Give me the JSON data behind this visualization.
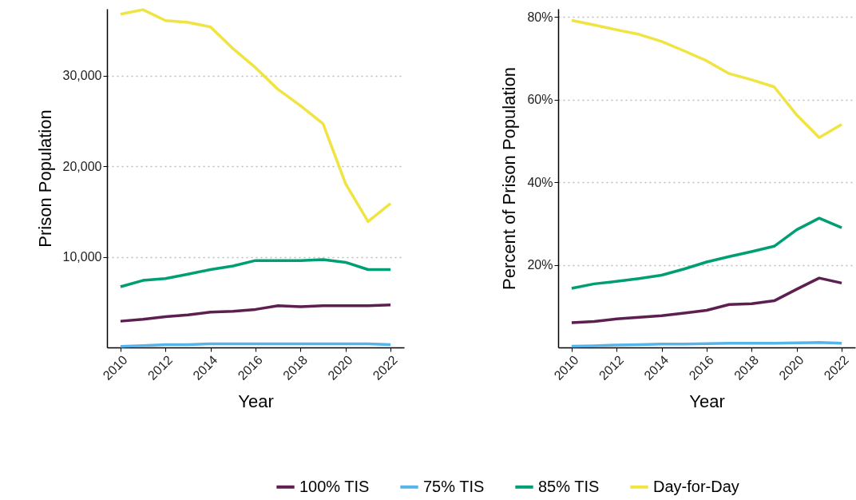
{
  "chart_data": [
    {
      "type": "line",
      "xlabel": "Year",
      "ylabel": "Prison Population",
      "x": [
        2010,
        2011,
        2012,
        2013,
        2014,
        2015,
        2016,
        2017,
        2018,
        2019,
        2020,
        2021,
        2022
      ],
      "series": [
        {
          "name": "100% TIS",
          "color": "#5c1f4f",
          "values": [
            2900,
            3100,
            3400,
            3600,
            3900,
            4000,
            4200,
            4600,
            4500,
            4600,
            4600,
            4600,
            4700
          ]
        },
        {
          "name": "75% TIS",
          "color": "#56b4e9",
          "values": [
            100,
            200,
            300,
            300,
            400,
            400,
            400,
            400,
            400,
            400,
            400,
            400,
            300
          ]
        },
        {
          "name": "85% TIS",
          "color": "#009e73",
          "values": [
            6700,
            7400,
            7600,
            8100,
            8600,
            9000,
            9600,
            9600,
            9600,
            9700,
            9400,
            8600,
            8600
          ]
        },
        {
          "name": "Day-for-Day",
          "color": "#f0e442",
          "values": [
            36800,
            37300,
            36100,
            35900,
            35400,
            33000,
            30900,
            28500,
            26700,
            24700,
            18100,
            13900,
            15900
          ]
        }
      ],
      "xlim": [
        2009.4,
        2022.6
      ],
      "xticks": [
        2010,
        2012,
        2014,
        2016,
        2018,
        2020,
        2022
      ],
      "ylim": [
        0,
        37400
      ],
      "yticks": [
        {
          "value": 10000,
          "label": "10,000"
        },
        {
          "value": 20000,
          "label": "20,000"
        },
        {
          "value": 30000,
          "label": "30,000"
        }
      ],
      "grid": "y",
      "legend": "bottom"
    },
    {
      "type": "line",
      "xlabel": "Year",
      "ylabel": "Percent of Prison Population",
      "x": [
        2010,
        2011,
        2012,
        2013,
        2014,
        2015,
        2016,
        2017,
        2018,
        2019,
        2020,
        2021,
        2022
      ],
      "series": [
        {
          "name": "100% TIS",
          "color": "#5c1f4f",
          "values": [
            6.0,
            6.3,
            6.9,
            7.3,
            7.7,
            8.3,
            9.0,
            10.4,
            10.6,
            11.3,
            14.1,
            16.8,
            15.6
          ]
        },
        {
          "name": "75% TIS",
          "color": "#56b4e9",
          "values": [
            0.3,
            0.4,
            0.6,
            0.7,
            0.8,
            0.8,
            0.9,
            1.0,
            1.0,
            1.0,
            1.1,
            1.2,
            1.0
          ]
        },
        {
          "name": "85% TIS",
          "color": "#009e73",
          "values": [
            14.3,
            15.4,
            16.0,
            16.7,
            17.5,
            19.0,
            20.7,
            22.0,
            23.2,
            24.5,
            28.5,
            31.3,
            29.0
          ]
        },
        {
          "name": "Day-for-Day",
          "color": "#f0e442",
          "values": [
            79.2,
            78.1,
            76.9,
            75.8,
            74.1,
            71.8,
            69.4,
            66.3,
            64.8,
            63.1,
            56.3,
            50.8,
            54.0
          ]
        }
      ],
      "xlim": [
        2009.4,
        2022.6
      ],
      "xticks": [
        2010,
        2012,
        2014,
        2016,
        2018,
        2020,
        2022
      ],
      "ylim": [
        0,
        82
      ],
      "yticks": [
        {
          "value": 20,
          "label": "20%"
        },
        {
          "value": 40,
          "label": "40%"
        },
        {
          "value": 60,
          "label": "60%"
        },
        {
          "value": 80,
          "label": "80%"
        }
      ],
      "grid": "y",
      "legend": "bottom"
    }
  ]
}
